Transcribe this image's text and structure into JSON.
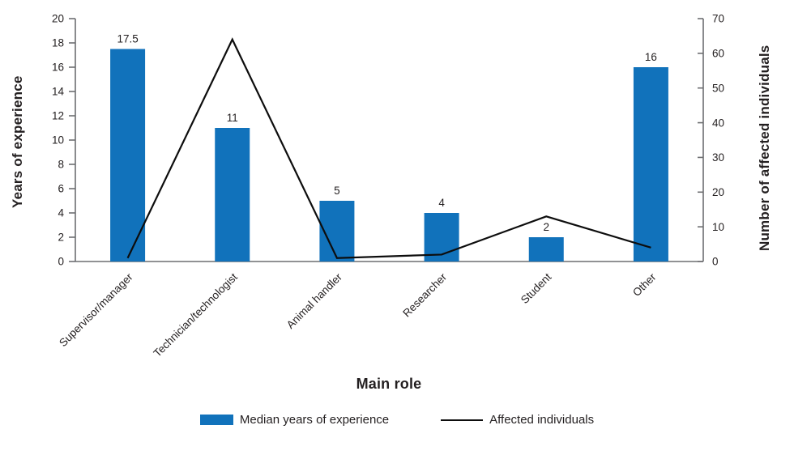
{
  "chart_data": {
    "type": "bar+line",
    "categories": [
      "Supervisor/manager",
      "Technician/technologist",
      "Animal handler",
      "Researcher",
      "Student",
      "Other"
    ],
    "series": [
      {
        "name": "Median years of experience",
        "type": "bar",
        "axis": "left",
        "values": [
          17.5,
          11,
          5,
          4,
          2,
          16
        ],
        "data_labels": [
          "17.5",
          "11",
          "5",
          "4",
          "2",
          "16"
        ],
        "color": "#1172bb"
      },
      {
        "name": "Affected individuals",
        "type": "line",
        "axis": "right",
        "values": [
          1,
          64,
          1,
          2,
          13,
          4
        ],
        "color": "#0d0d0d"
      }
    ],
    "title": "",
    "xlabel": "Main role",
    "ylabel_left": "Years of experience",
    "ylabel_right": "Number of affected individuals",
    "y_left": {
      "min": 0,
      "max": 20,
      "step": 2
    },
    "y_right": {
      "min": 0,
      "max": 70,
      "step": 10
    },
    "grid": false,
    "legend_position": "bottom"
  },
  "legend": {
    "items": [
      {
        "label": "Median years of experience",
        "swatch": "bar",
        "color": "#1172bb"
      },
      {
        "label": "Affected individuals",
        "swatch": "line",
        "color": "#0d0d0d"
      }
    ]
  },
  "colors": {
    "bar": "#1172bb",
    "line": "#0d0d0d",
    "axis": "#6d6e71",
    "text": "#231f20"
  }
}
